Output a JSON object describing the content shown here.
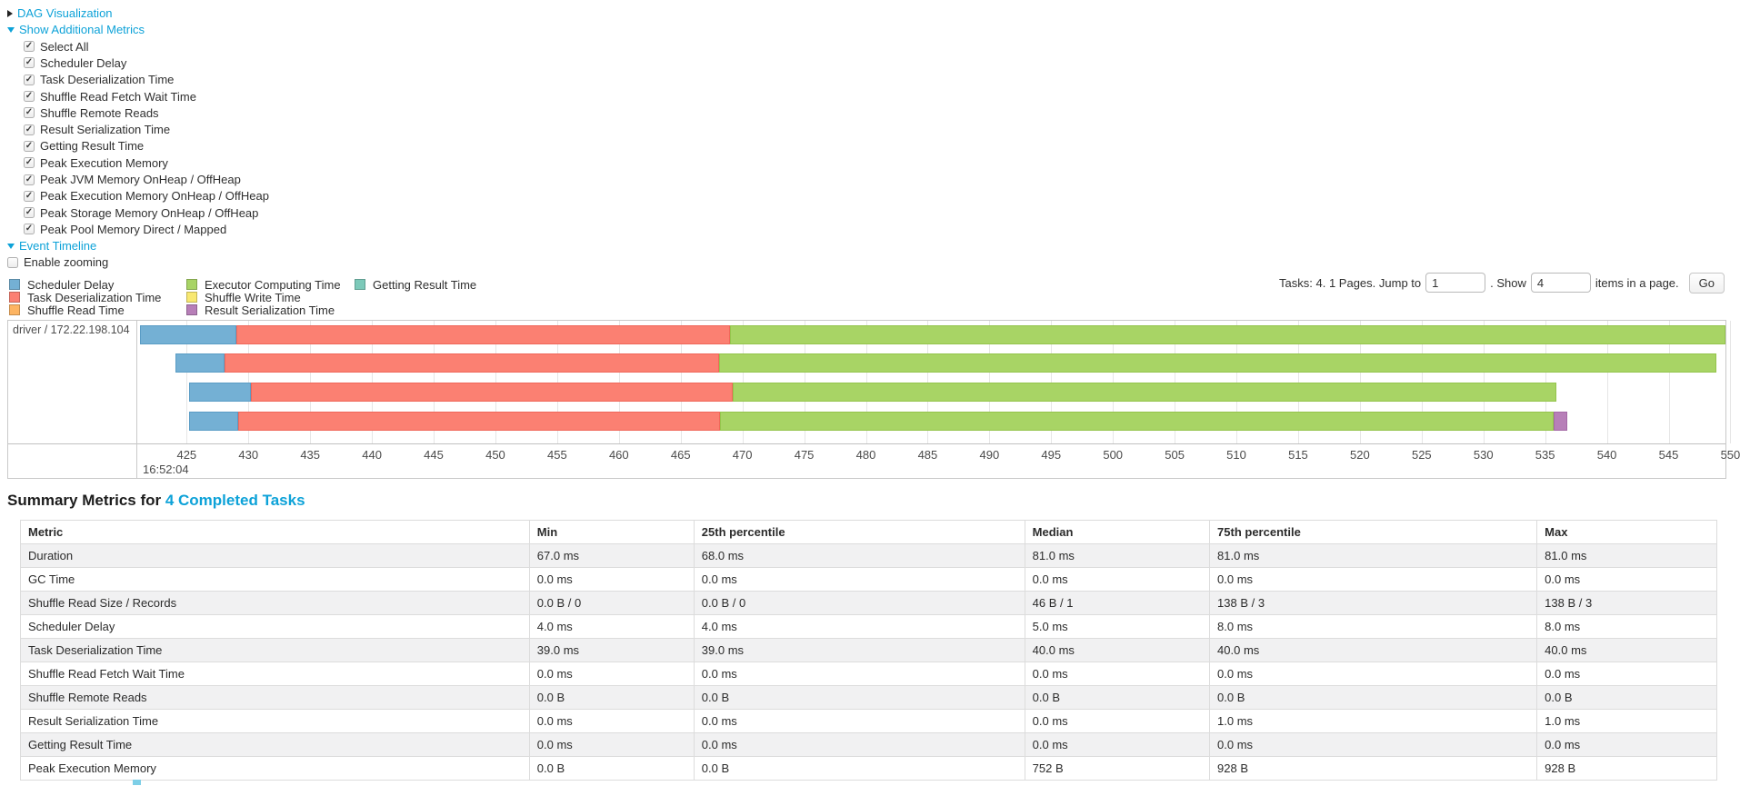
{
  "colors": {
    "link": "#0da2d8",
    "scheduler_delay": "#74B0D4",
    "deserialization": "#FB8072",
    "shuffle_read": "#FDB462",
    "computing": "#A8D465",
    "shuffle_write": "#F8E871",
    "serialization": "#B77FB8",
    "getting_result": "#7CC9B9"
  },
  "panels": {
    "dag": {
      "label": "DAG Visualization"
    },
    "metrics": {
      "label": "Show Additional Metrics",
      "items": [
        "Select All",
        "Scheduler Delay",
        "Task Deserialization Time",
        "Shuffle Read Fetch Wait Time",
        "Shuffle Remote Reads",
        "Result Serialization Time",
        "Getting Result Time",
        "Peak Execution Memory",
        "Peak JVM Memory OnHeap / OffHeap",
        "Peak Execution Memory OnHeap / OffHeap",
        "Peak Storage Memory OnHeap / OffHeap",
        "Peak Pool Memory Direct / Mapped"
      ]
    },
    "timeline": {
      "label": "Event Timeline",
      "enable_zooming": "Enable zooming"
    }
  },
  "legend": {
    "columns": [
      [
        {
          "label": "Scheduler Delay",
          "color": "#74B0D4"
        },
        {
          "label": "Task Deserialization Time",
          "color": "#FB8072"
        },
        {
          "label": "Shuffle Read Time",
          "color": "#FDB462"
        }
      ],
      [
        {
          "label": "Executor Computing Time",
          "color": "#A8D465"
        },
        {
          "label": "Shuffle Write Time",
          "color": "#F8E871"
        },
        {
          "label": "Result Serialization Time",
          "color": "#B77FB8"
        }
      ],
      [
        {
          "label": "Getting Result Time",
          "color": "#7CC9B9"
        }
      ]
    ]
  },
  "pagination": {
    "prefix_text": "Tasks: 4. 1 Pages. Jump to",
    "jump_value": "1",
    "mid_text": ". Show",
    "show_value": "4",
    "suffix_text": "items in a page.",
    "go_label": "Go"
  },
  "chart_data": {
    "type": "timeline",
    "group_label": "driver / 172.22.198.104",
    "axis": {
      "min": 421,
      "max": 549.6,
      "tick_start": 425,
      "tick_end": 550,
      "tick_step": 5,
      "time_label": "16:52:04"
    },
    "segment_colors": {
      "scheduler_delay": {
        "fill": "#74B0D4",
        "border": "#5a9cc5"
      },
      "deserialization": {
        "fill": "#FB8072",
        "border": "#f0675a"
      },
      "computing": {
        "fill": "#A8D465",
        "border": "#94c44c"
      },
      "serialization": {
        "fill": "#B77FB8",
        "border": "#a468a5"
      }
    },
    "tasks": [
      {
        "segments": [
          {
            "name": "scheduler_delay",
            "start": 421.2,
            "end": 429.0
          },
          {
            "name": "deserialization",
            "start": 429.0,
            "end": 469.0
          },
          {
            "name": "computing",
            "start": 469.0,
            "end": 549.6
          }
        ]
      },
      {
        "segments": [
          {
            "name": "scheduler_delay",
            "start": 424.1,
            "end": 428.1
          },
          {
            "name": "deserialization",
            "start": 428.1,
            "end": 468.1
          },
          {
            "name": "computing",
            "start": 468.1,
            "end": 548.9
          }
        ]
      },
      {
        "segments": [
          {
            "name": "scheduler_delay",
            "start": 425.2,
            "end": 430.2
          },
          {
            "name": "deserialization",
            "start": 430.2,
            "end": 469.2
          },
          {
            "name": "computing",
            "start": 469.2,
            "end": 535.9
          }
        ]
      },
      {
        "segments": [
          {
            "name": "scheduler_delay",
            "start": 425.2,
            "end": 429.2
          },
          {
            "name": "deserialization",
            "start": 429.2,
            "end": 468.2
          },
          {
            "name": "computing",
            "start": 468.2,
            "end": 535.7
          },
          {
            "name": "serialization",
            "start": 535.7,
            "end": 536.8
          }
        ]
      }
    ]
  },
  "summary": {
    "title_prefix": "Summary Metrics for ",
    "title_link": "4 Completed Tasks",
    "table": {
      "headers": [
        "Metric",
        "Min",
        "25th percentile",
        "Median",
        "75th percentile",
        "Max"
      ],
      "rows": [
        [
          "Duration",
          "67.0 ms",
          "68.0 ms",
          "81.0 ms",
          "81.0 ms",
          "81.0 ms"
        ],
        [
          "GC Time",
          "0.0 ms",
          "0.0 ms",
          "0.0 ms",
          "0.0 ms",
          "0.0 ms"
        ],
        [
          "Shuffle Read Size / Records",
          "0.0 B / 0",
          "0.0 B / 0",
          "46 B / 1",
          "138 B / 3",
          "138 B / 3"
        ],
        [
          "Scheduler Delay",
          "4.0 ms",
          "4.0 ms",
          "5.0 ms",
          "8.0 ms",
          "8.0 ms"
        ],
        [
          "Task Deserialization Time",
          "39.0 ms",
          "39.0 ms",
          "40.0 ms",
          "40.0 ms",
          "40.0 ms"
        ],
        [
          "Shuffle Read Fetch Wait Time",
          "0.0 ms",
          "0.0 ms",
          "0.0 ms",
          "0.0 ms",
          "0.0 ms"
        ],
        [
          "Shuffle Remote Reads",
          "0.0 B",
          "0.0 B",
          "0.0 B",
          "0.0 B",
          "0.0 B"
        ],
        [
          "Result Serialization Time",
          "0.0 ms",
          "0.0 ms",
          "0.0 ms",
          "1.0 ms",
          "1.0 ms"
        ],
        [
          "Getting Result Time",
          "0.0 ms",
          "0.0 ms",
          "0.0 ms",
          "0.0 ms",
          "0.0 ms"
        ],
        [
          "Peak Execution Memory",
          "0.0 B",
          "0.0 B",
          "752 B",
          "928 B",
          "928 B"
        ]
      ]
    }
  }
}
